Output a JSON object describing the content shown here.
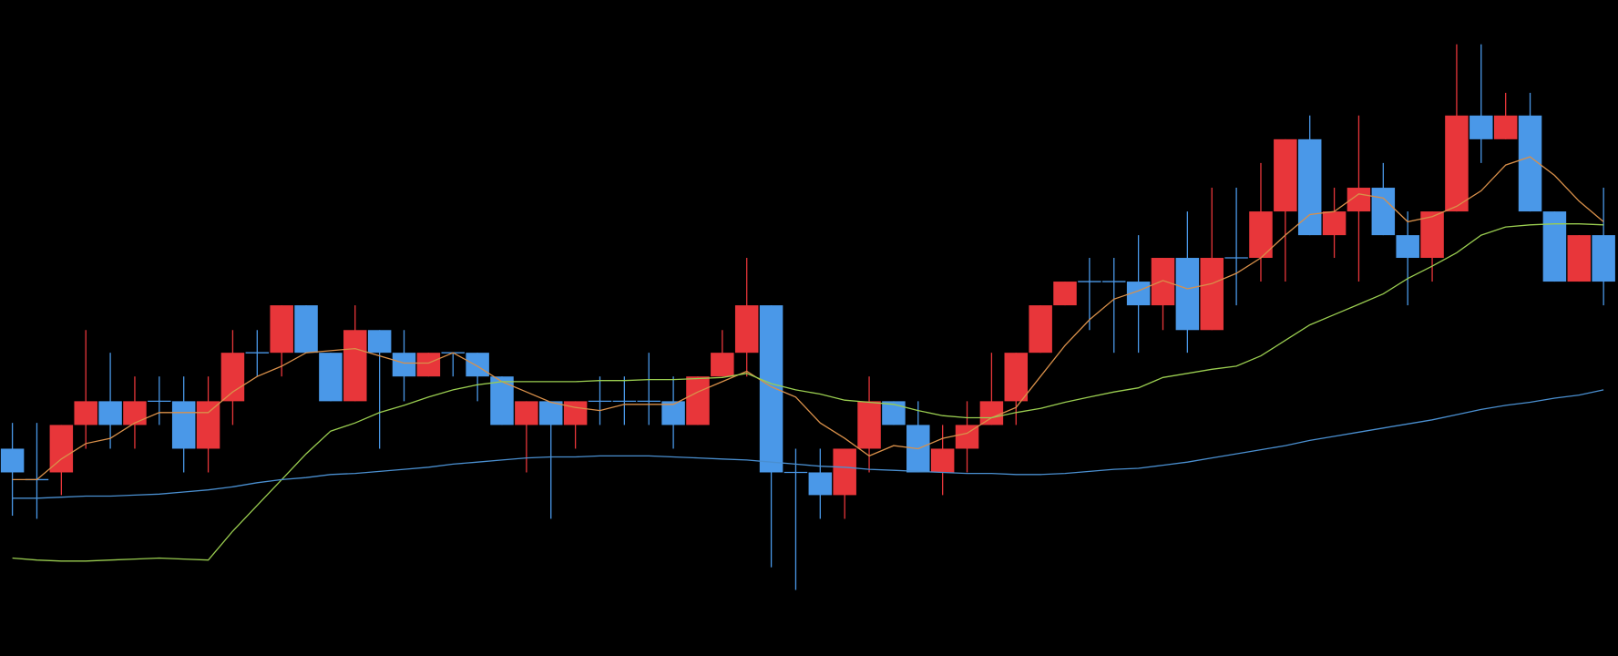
{
  "chart_data": {
    "type": "candlestick",
    "ylim": [
      0,
      636
    ],
    "up_color": "#e8363a",
    "down_color": "#4a98e8",
    "candles": {
      "open": [
        201,
        171,
        178,
        224,
        247,
        224,
        247,
        247,
        201,
        247,
        294,
        294,
        340,
        294,
        247,
        316,
        294,
        271,
        294,
        294,
        271,
        224,
        247,
        224,
        247,
        247,
        247,
        247,
        224,
        271,
        294,
        340,
        178,
        178,
        156,
        201,
        247,
        224,
        178,
        201,
        224,
        247,
        294,
        340,
        363,
        363,
        363,
        340,
        386,
        316,
        386,
        386,
        431,
        501,
        408,
        431,
        454,
        408,
        386,
        431,
        524,
        501,
        524,
        431,
        363,
        408
      ],
      "high": [
        226,
        226,
        224,
        316,
        294,
        271,
        271,
        271,
        271,
        316,
        316,
        340,
        340,
        294,
        340,
        316,
        316,
        294,
        294,
        294,
        271,
        247,
        247,
        247,
        271,
        271,
        294,
        271,
        271,
        316,
        386,
        340,
        201,
        201,
        201,
        271,
        247,
        247,
        224,
        247,
        294,
        294,
        340,
        363,
        386,
        386,
        408,
        386,
        431,
        454,
        454,
        478,
        501,
        524,
        454,
        524,
        478,
        431,
        431,
        593,
        593,
        546,
        546,
        431,
        408,
        454
      ],
      "low": [
        136,
        133,
        156,
        201,
        201,
        201,
        224,
        178,
        178,
        224,
        271,
        271,
        294,
        247,
        247,
        201,
        247,
        271,
        271,
        247,
        224,
        178,
        133,
        201,
        224,
        224,
        224,
        201,
        224,
        271,
        271,
        86,
        64,
        133,
        133,
        178,
        224,
        178,
        156,
        178,
        224,
        224,
        294,
        340,
        316,
        294,
        294,
        316,
        294,
        316,
        340,
        363,
        363,
        408,
        386,
        363,
        408,
        340,
        363,
        431,
        478,
        501,
        431,
        363,
        363,
        340
      ],
      "close": [
        178,
        171,
        224,
        247,
        224,
        247,
        247,
        201,
        247,
        294,
        294,
        340,
        294,
        247,
        316,
        294,
        271,
        294,
        294,
        271,
        224,
        247,
        224,
        247,
        247,
        247,
        247,
        224,
        271,
        294,
        340,
        178,
        178,
        156,
        201,
        247,
        224,
        178,
        201,
        224,
        247,
        294,
        340,
        363,
        363,
        363,
        340,
        386,
        316,
        386,
        386,
        431,
        501,
        408,
        431,
        454,
        408,
        386,
        431,
        524,
        501,
        524,
        431,
        363,
        408,
        363
      ]
    },
    "series": [
      {
        "color": "#d9904a",
        "values": [
          171,
          171,
          191,
          206,
          211,
          226,
          236,
          236,
          236,
          256,
          271,
          281,
          294,
          296,
          298,
          291,
          284,
          284,
          294,
          281,
          266,
          256,
          246,
          241,
          238,
          244,
          244,
          244,
          256,
          266,
          276,
          261,
          251,
          226,
          211,
          194,
          204,
          201,
          211,
          216,
          231,
          241,
          271,
          301,
          326,
          346,
          354,
          364,
          356,
          361,
          371,
          386,
          408,
          428,
          431,
          448,
          444,
          421,
          426,
          436,
          451,
          476,
          484,
          466,
          441,
          421
        ]
      },
      {
        "color": "#9acd50",
        "values": [
          95,
          93,
          92,
          92,
          93,
          94,
          95,
          94,
          93,
          121,
          146,
          171,
          196,
          218,
          226,
          236,
          243,
          251,
          258,
          263,
          266,
          266,
          266,
          266,
          267,
          267,
          268,
          268,
          269,
          270,
          274,
          264,
          258,
          254,
          248,
          246,
          244,
          238,
          233,
          231,
          231,
          236,
          240,
          246,
          251,
          256,
          260,
          270,
          274,
          278,
          281,
          291,
          306,
          321,
          331,
          341,
          351,
          366,
          378,
          391,
          408,
          416,
          418,
          419,
          419,
          418
        ]
      },
      {
        "color": "#4a8fd0",
        "values": [
          153,
          153,
          154,
          155,
          155,
          156,
          157,
          159,
          161,
          164,
          168,
          171,
          173,
          176,
          177,
          179,
          181,
          183,
          186,
          188,
          190,
          192,
          193,
          193,
          194,
          194,
          194,
          193,
          192,
          191,
          190,
          188,
          186,
          184,
          183,
          181,
          180,
          179,
          178,
          177,
          177,
          176,
          176,
          177,
          179,
          181,
          182,
          185,
          188,
          192,
          196,
          200,
          204,
          209,
          213,
          217,
          221,
          225,
          229,
          234,
          239,
          243,
          246,
          250,
          253,
          258
        ]
      }
    ]
  }
}
